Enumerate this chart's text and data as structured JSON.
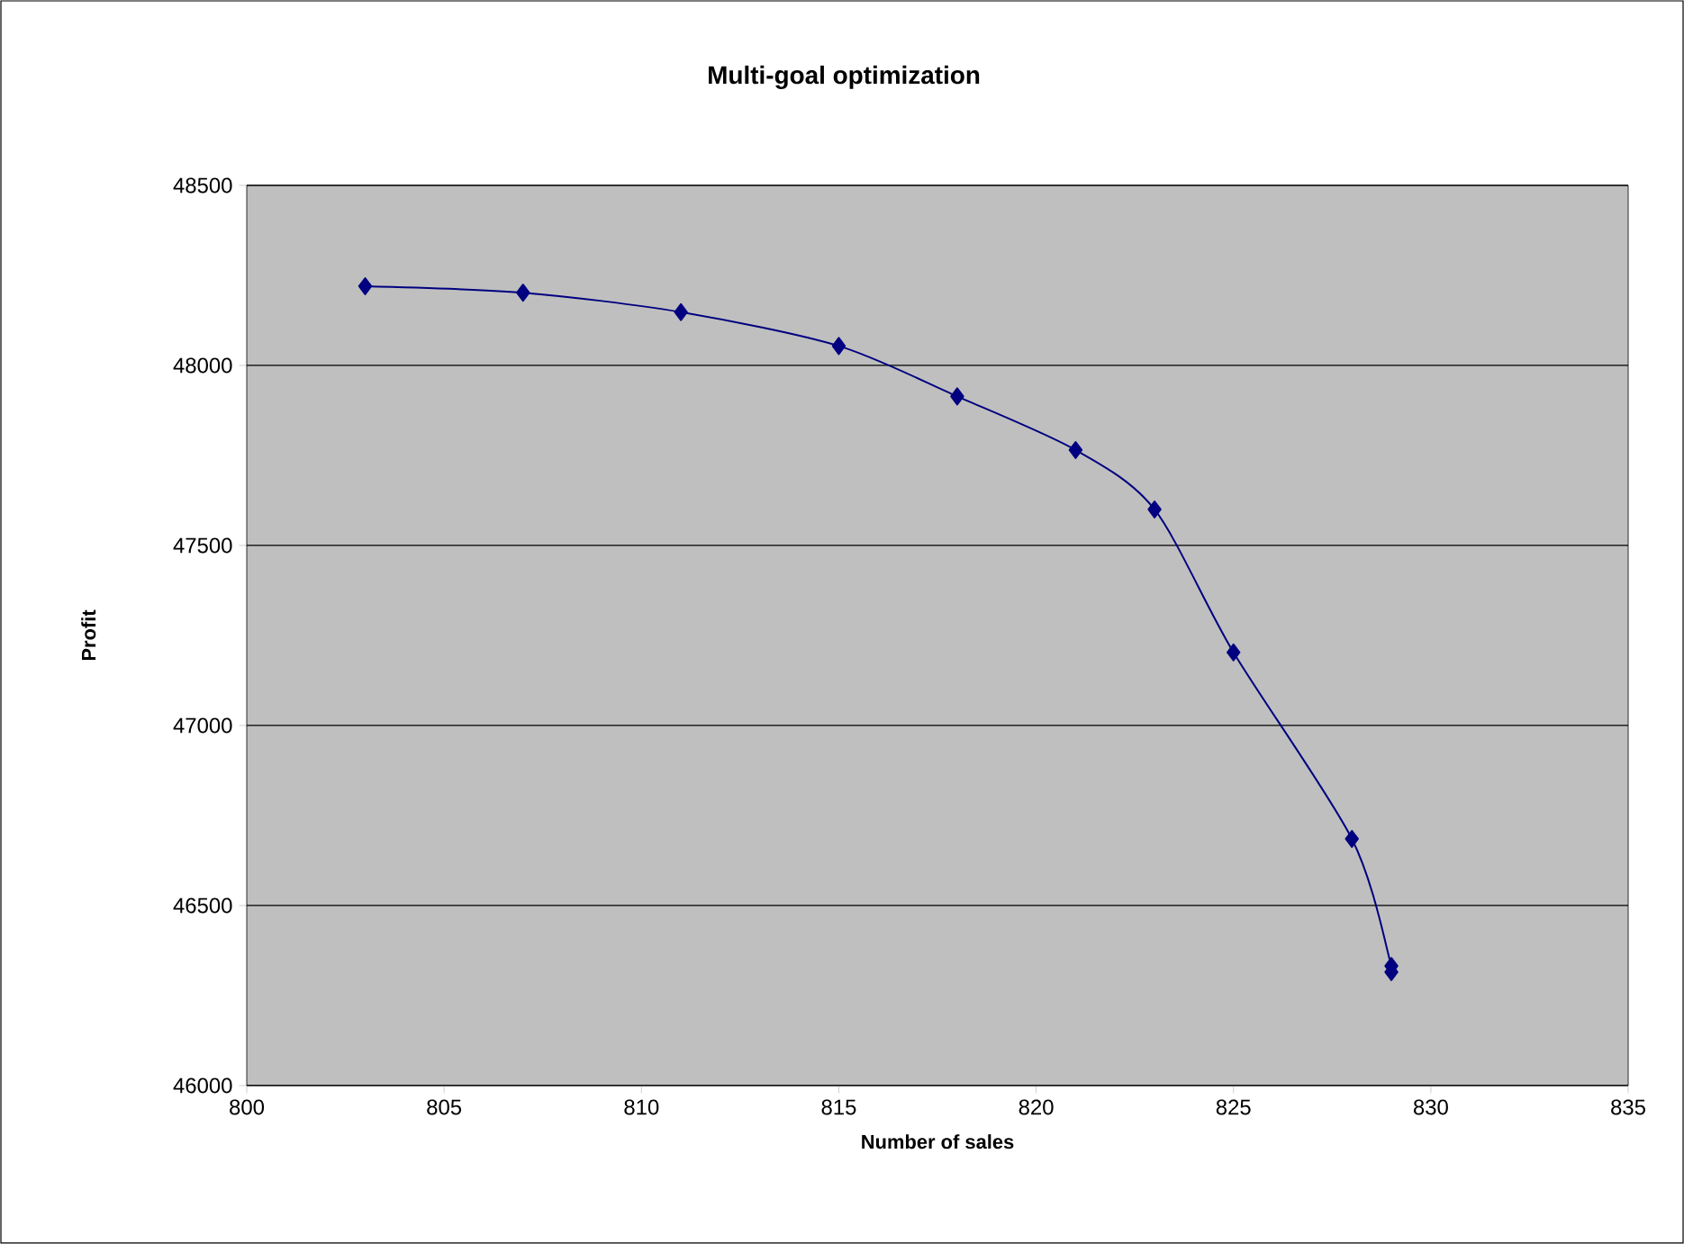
{
  "chart_data": {
    "type": "line",
    "title": "Multi-goal optimization",
    "xlabel": "Number of sales",
    "ylabel": "Profit",
    "x": [
      803,
      807,
      811,
      815,
      818,
      821,
      823,
      825,
      828,
      829,
      829
    ],
    "series": [
      {
        "color": "#000080",
        "values": [
          48220,
          48202,
          48148,
          48054,
          47914,
          47765,
          47600,
          47203,
          46685,
          46332,
          46315
        ]
      }
    ],
    "xlim": [
      800,
      835
    ],
    "xticks": [
      800,
      805,
      810,
      815,
      820,
      825,
      830,
      835
    ],
    "ylim": [
      46000,
      48500
    ],
    "yticks": [
      46000,
      46500,
      47000,
      47500,
      48000,
      48500
    ],
    "grid": "y",
    "marker": "diamond",
    "line_style": "solid"
  }
}
